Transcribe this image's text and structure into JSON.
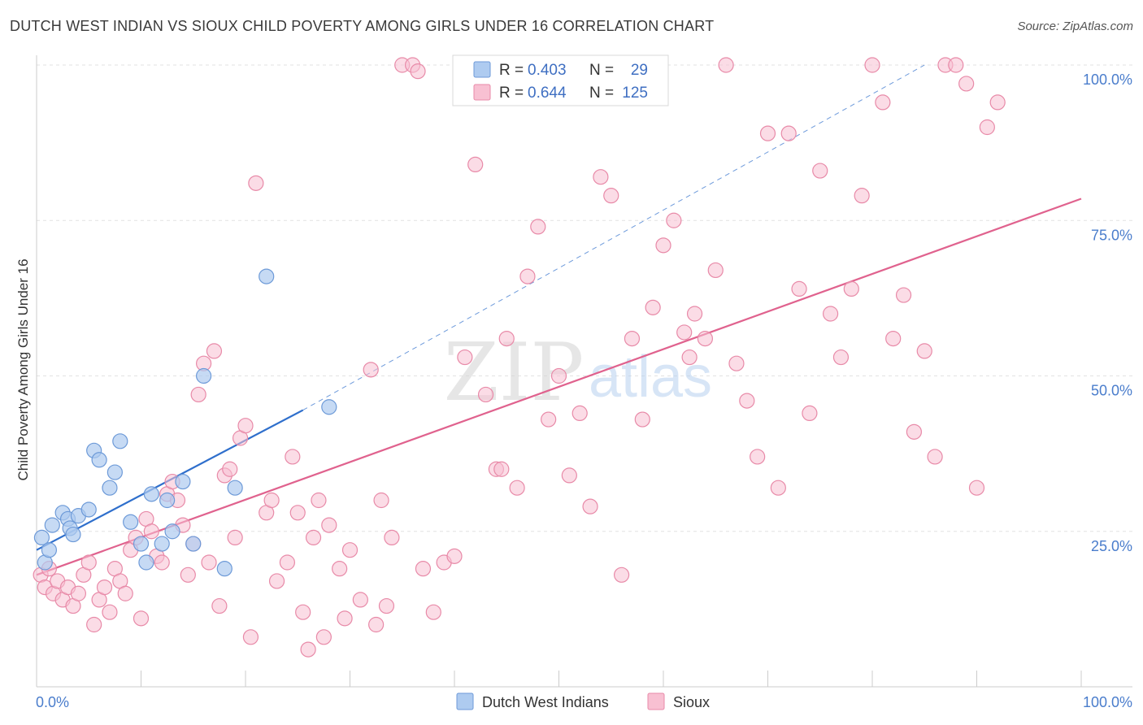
{
  "title": "DUTCH WEST INDIAN VS SIOUX CHILD POVERTY AMONG GIRLS UNDER 16 CORRELATION CHART",
  "source": "Source: ZipAtlas.com",
  "watermark": {
    "zip": "ZIP",
    "atlas": "atlas"
  },
  "stats": {
    "dutch": {
      "r_label": "R =",
      "r": "0.403",
      "n_label": "N =",
      "n": "29"
    },
    "sioux": {
      "r_label": "R =",
      "r": "0.644",
      "n_label": "N =",
      "n": "125"
    }
  },
  "colors": {
    "dutch_fill": "#aecbf0",
    "dutch_stroke": "#6d9ad8",
    "dutch_line": "#2f6fcc",
    "sioux_fill": "#f8c0d2",
    "sioux_stroke": "#e88aa8",
    "sioux_line": "#e0628e"
  },
  "chart_data": {
    "type": "scatter",
    "title": "DUTCH WEST INDIAN VS SIOUX CHILD POVERTY AMONG GIRLS UNDER 16 CORRELATION CHART",
    "xlabel": "",
    "ylabel": "Child Poverty Among Girls Under 16",
    "xlim": [
      0,
      100
    ],
    "ylim": [
      0,
      100
    ],
    "x_tick_labels": {
      "left": "0.0%",
      "right": "100.0%"
    },
    "y_tick_labels": [
      {
        "value": 25,
        "label": "25.0%"
      },
      {
        "value": 50,
        "label": "50.0%"
      },
      {
        "value": 75,
        "label": "75.0%"
      },
      {
        "value": 100,
        "label": "100.0%"
      }
    ],
    "legend": [
      "Dutch West Indians",
      "Sioux"
    ],
    "series": [
      {
        "name": "Dutch West Indians",
        "points": [
          [
            0.5,
            24
          ],
          [
            0.8,
            20
          ],
          [
            1.2,
            22
          ],
          [
            1.5,
            26
          ],
          [
            2.5,
            28
          ],
          [
            3,
            27
          ],
          [
            3.2,
            25.5
          ],
          [
            4,
            27.5
          ],
          [
            3.5,
            24.5
          ],
          [
            5,
            28.5
          ],
          [
            5.5,
            38
          ],
          [
            6,
            36.5
          ],
          [
            7,
            32
          ],
          [
            7.5,
            34.5
          ],
          [
            8,
            39.5
          ],
          [
            9,
            26.5
          ],
          [
            10,
            23
          ],
          [
            10.5,
            20
          ],
          [
            11,
            31
          ],
          [
            12,
            23
          ],
          [
            12.5,
            30
          ],
          [
            13,
            25
          ],
          [
            14,
            33
          ],
          [
            15,
            23
          ],
          [
            16,
            50
          ],
          [
            18,
            19
          ],
          [
            19,
            32
          ],
          [
            22,
            66
          ],
          [
            28,
            45
          ]
        ],
        "trend": {
          "x": [
            0,
            25.5
          ],
          "y": [
            22,
            44.5
          ]
        },
        "trend_extended": {
          "x": [
            25.5,
            85
          ],
          "y": [
            44.5,
            100
          ]
        }
      },
      {
        "name": "Sioux",
        "points": [
          [
            0.4,
            18
          ],
          [
            0.8,
            16
          ],
          [
            1.2,
            19
          ],
          [
            1.6,
            15
          ],
          [
            2,
            17
          ],
          [
            2.5,
            14
          ],
          [
            3,
            16
          ],
          [
            3.5,
            13
          ],
          [
            4,
            15
          ],
          [
            4.5,
            18
          ],
          [
            5,
            20
          ],
          [
            5.5,
            10
          ],
          [
            6,
            14
          ],
          [
            6.5,
            16
          ],
          [
            7,
            12
          ],
          [
            7.5,
            19
          ],
          [
            8,
            17
          ],
          [
            8.5,
            15
          ],
          [
            9,
            22
          ],
          [
            9.5,
            24
          ],
          [
            10,
            11
          ],
          [
            10.5,
            27
          ],
          [
            11,
            25
          ],
          [
            11.5,
            21
          ],
          [
            12,
            20
          ],
          [
            12.5,
            31
          ],
          [
            13,
            33
          ],
          [
            13.5,
            30
          ],
          [
            14,
            26
          ],
          [
            14.5,
            18
          ],
          [
            15,
            23
          ],
          [
            15.5,
            47
          ],
          [
            16,
            52
          ],
          [
            16.5,
            20
          ],
          [
            17,
            54
          ],
          [
            17.5,
            13
          ],
          [
            18,
            34
          ],
          [
            18.5,
            35
          ],
          [
            19,
            24
          ],
          [
            19.5,
            40
          ],
          [
            20,
            42
          ],
          [
            20.5,
            8
          ],
          [
            21,
            81
          ],
          [
            22,
            28
          ],
          [
            22.5,
            30
          ],
          [
            23,
            17
          ],
          [
            24,
            20
          ],
          [
            24.5,
            37
          ],
          [
            25,
            28
          ],
          [
            25.5,
            12
          ],
          [
            26,
            6
          ],
          [
            26.5,
            24
          ],
          [
            27,
            30
          ],
          [
            27.5,
            8
          ],
          [
            28,
            26
          ],
          [
            29,
            19
          ],
          [
            29.5,
            11
          ],
          [
            30,
            22
          ],
          [
            31,
            14
          ],
          [
            32,
            51
          ],
          [
            32.5,
            10
          ],
          [
            33,
            30
          ],
          [
            33.5,
            13
          ],
          [
            34,
            24
          ],
          [
            35,
            100
          ],
          [
            36,
            100
          ],
          [
            36.5,
            99
          ],
          [
            37,
            19
          ],
          [
            38,
            12
          ],
          [
            39,
            20
          ],
          [
            40,
            21
          ],
          [
            41,
            53
          ],
          [
            42,
            84
          ],
          [
            43,
            47
          ],
          [
            44,
            35
          ],
          [
            44.5,
            35
          ],
          [
            45,
            56
          ],
          [
            46,
            32
          ],
          [
            47,
            66
          ],
          [
            48,
            74
          ],
          [
            49,
            43
          ],
          [
            50,
            50
          ],
          [
            51,
            34
          ],
          [
            52,
            44
          ],
          [
            53,
            29
          ],
          [
            54,
            82
          ],
          [
            55,
            79
          ],
          [
            56,
            18
          ],
          [
            57,
            56
          ],
          [
            58,
            43
          ],
          [
            59,
            61
          ],
          [
            60,
            71
          ],
          [
            61,
            75
          ],
          [
            62,
            57
          ],
          [
            62.5,
            53
          ],
          [
            63,
            60
          ],
          [
            64,
            56
          ],
          [
            65,
            67
          ],
          [
            66,
            100
          ],
          [
            67,
            52
          ],
          [
            68,
            46
          ],
          [
            69,
            37
          ],
          [
            70,
            89
          ],
          [
            71,
            32
          ],
          [
            72,
            89
          ],
          [
            73,
            64
          ],
          [
            74,
            44
          ],
          [
            75,
            83
          ],
          [
            76,
            60
          ],
          [
            77,
            53
          ],
          [
            78,
            64
          ],
          [
            79,
            79
          ],
          [
            80,
            100
          ],
          [
            81,
            94
          ],
          [
            82,
            56
          ],
          [
            83,
            63
          ],
          [
            84,
            41
          ],
          [
            85,
            54
          ],
          [
            86,
            37
          ],
          [
            87,
            100
          ],
          [
            88,
            100
          ],
          [
            89,
            97
          ],
          [
            90,
            32
          ],
          [
            91,
            90
          ],
          [
            92,
            94
          ]
        ],
        "trend": {
          "x": [
            0,
            100
          ],
          "y": [
            18,
            78.5
          ]
        }
      }
    ]
  }
}
